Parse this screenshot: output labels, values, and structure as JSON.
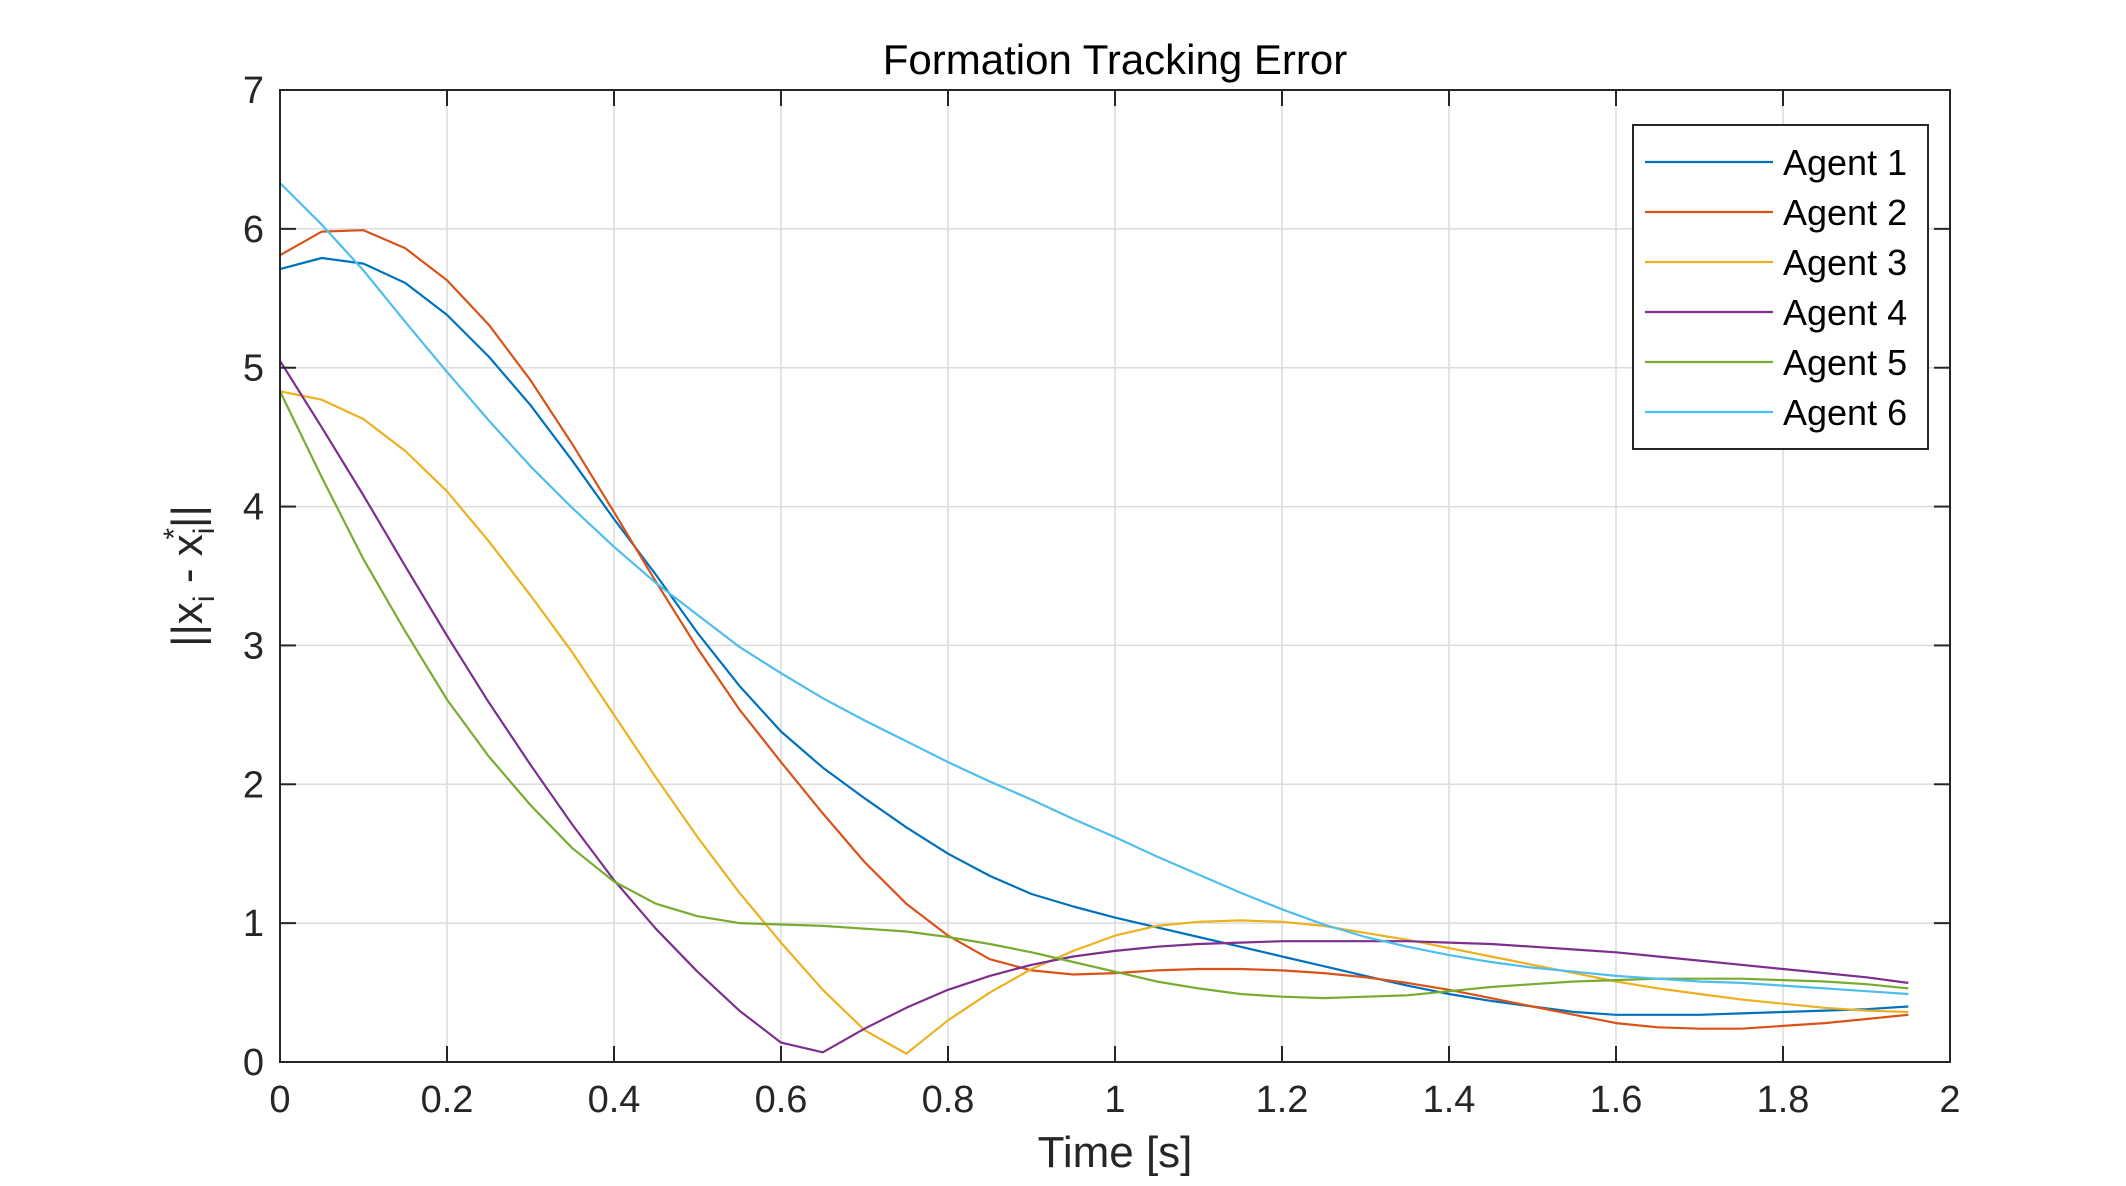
{
  "chart_data": {
    "type": "line",
    "title": "Formation Tracking Error",
    "xlabel": "Time [s]",
    "ylabel": "||x_i - x_i*||",
    "xlim": [
      0,
      2
    ],
    "ylim": [
      0,
      7
    ],
    "xticks": [
      0,
      0.2,
      0.4,
      0.6,
      0.8,
      1,
      1.2,
      1.4,
      1.6,
      1.8,
      2
    ],
    "xtick_labels": [
      "0",
      "0.2",
      "0.4",
      "0.6",
      "0.8",
      "1",
      "1.2",
      "1.4",
      "1.6",
      "1.8",
      "2"
    ],
    "yticks": [
      0,
      1,
      2,
      3,
      4,
      5,
      6,
      7
    ],
    "ytick_labels": [
      "0",
      "1",
      "2",
      "3",
      "4",
      "5",
      "6",
      "7"
    ],
    "grid": true,
    "legend_position": "top-right",
    "x": [
      0,
      0.05,
      0.1,
      0.15,
      0.2,
      0.25,
      0.3,
      0.35,
      0.4,
      0.45,
      0.5,
      0.55,
      0.6,
      0.65,
      0.7,
      0.75,
      0.8,
      0.85,
      0.9,
      0.95,
      1.0,
      1.05,
      1.1,
      1.15,
      1.2,
      1.25,
      1.3,
      1.35,
      1.4,
      1.45,
      1.5,
      1.55,
      1.6,
      1.65,
      1.7,
      1.75,
      1.8,
      1.85,
      1.9,
      1.95
    ],
    "series": [
      {
        "name": "Agent 1",
        "color": "#0072BD",
        "values": [
          5.71,
          5.79,
          5.75,
          5.61,
          5.38,
          5.08,
          4.73,
          4.33,
          3.91,
          3.51,
          3.09,
          2.71,
          2.38,
          2.12,
          1.9,
          1.69,
          1.5,
          1.34,
          1.21,
          1.12,
          1.04,
          0.97,
          0.9,
          0.83,
          0.76,
          0.69,
          0.62,
          0.55,
          0.49,
          0.44,
          0.4,
          0.36,
          0.34,
          0.34,
          0.34,
          0.35,
          0.36,
          0.37,
          0.38,
          0.4
        ]
      },
      {
        "name": "Agent 2",
        "color": "#D95319",
        "values": [
          5.81,
          5.98,
          5.99,
          5.86,
          5.63,
          5.31,
          4.91,
          4.45,
          3.96,
          3.46,
          2.98,
          2.54,
          2.16,
          1.79,
          1.44,
          1.14,
          0.91,
          0.74,
          0.66,
          0.63,
          0.64,
          0.66,
          0.67,
          0.67,
          0.66,
          0.64,
          0.61,
          0.57,
          0.52,
          0.46,
          0.4,
          0.34,
          0.28,
          0.25,
          0.24,
          0.24,
          0.26,
          0.28,
          0.31,
          0.34
        ]
      },
      {
        "name": "Agent 3",
        "color": "#EDB120",
        "values": [
          4.83,
          4.77,
          4.63,
          4.4,
          4.11,
          3.75,
          3.36,
          2.95,
          2.5,
          2.05,
          1.62,
          1.22,
          0.86,
          0.52,
          0.23,
          0.06,
          0.3,
          0.5,
          0.67,
          0.8,
          0.91,
          0.98,
          1.01,
          1.02,
          1.01,
          0.98,
          0.93,
          0.88,
          0.82,
          0.76,
          0.7,
          0.64,
          0.58,
          0.53,
          0.49,
          0.45,
          0.42,
          0.39,
          0.37,
          0.36
        ]
      },
      {
        "name": "Agent 4",
        "color": "#7E2F8E",
        "values": [
          5.05,
          4.57,
          4.08,
          3.57,
          3.07,
          2.59,
          2.14,
          1.71,
          1.31,
          0.96,
          0.65,
          0.37,
          0.14,
          0.07,
          0.24,
          0.39,
          0.52,
          0.62,
          0.7,
          0.76,
          0.8,
          0.83,
          0.85,
          0.86,
          0.87,
          0.87,
          0.87,
          0.87,
          0.86,
          0.85,
          0.83,
          0.81,
          0.79,
          0.76,
          0.73,
          0.7,
          0.67,
          0.64,
          0.61,
          0.57
        ]
      },
      {
        "name": "Agent 5",
        "color": "#77AC30",
        "values": [
          4.83,
          4.21,
          3.62,
          3.1,
          2.61,
          2.2,
          1.85,
          1.54,
          1.3,
          1.14,
          1.05,
          1.0,
          0.99,
          0.98,
          0.96,
          0.94,
          0.9,
          0.85,
          0.79,
          0.72,
          0.65,
          0.58,
          0.53,
          0.49,
          0.47,
          0.46,
          0.47,
          0.48,
          0.51,
          0.54,
          0.56,
          0.58,
          0.59,
          0.6,
          0.6,
          0.6,
          0.59,
          0.58,
          0.56,
          0.53
        ]
      },
      {
        "name": "Agent 6",
        "color": "#4DBEEE",
        "values": [
          6.33,
          6.03,
          5.7,
          5.33,
          4.97,
          4.62,
          4.29,
          3.99,
          3.71,
          3.45,
          3.22,
          2.99,
          2.8,
          2.62,
          2.46,
          2.31,
          2.16,
          2.02,
          1.89,
          1.75,
          1.62,
          1.48,
          1.35,
          1.22,
          1.1,
          0.99,
          0.9,
          0.83,
          0.77,
          0.72,
          0.68,
          0.65,
          0.62,
          0.6,
          0.58,
          0.57,
          0.55,
          0.53,
          0.51,
          0.49
        ]
      }
    ]
  }
}
